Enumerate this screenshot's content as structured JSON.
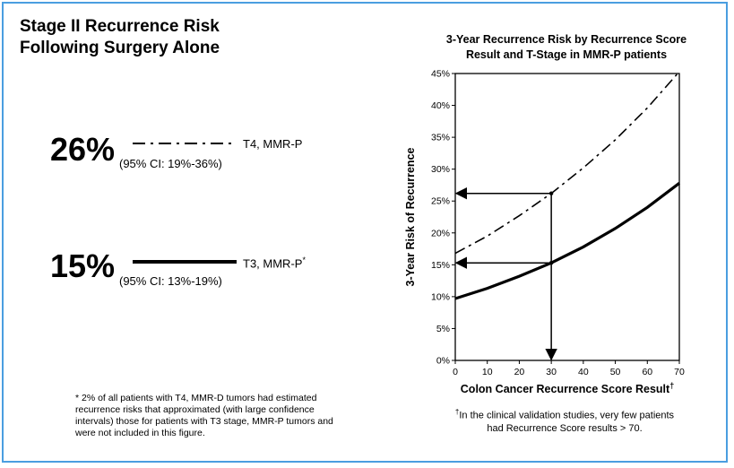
{
  "left_panel": {
    "title_line1": "Stage II Recurrence Risk",
    "title_line2": "Following Surgery Alone",
    "risks": [
      {
        "percent": "26%",
        "ci": "(95% CI: 19%-36%)",
        "label": "T4, MMR-P",
        "style": "dash-dot"
      },
      {
        "percent": "15%",
        "ci": "(95% CI: 13%-19%)",
        "label": "T3, MMR-P",
        "label_mark": "*",
        "style": "solid"
      }
    ],
    "footnote": "* 2% of all patients with T4, MMR-D tumors had estimated recurrence risks that approximated (with large confidence intervals) those for patients with T3 stage, MMR-P tumors and were not included in this figure."
  },
  "chart_data": {
    "type": "line",
    "title_line1": "3-Year Recurrence Risk by Recurrence Score",
    "title_line2": "Result and T-Stage in MMR-P patients",
    "xlabel": "Colon Cancer Recurrence Score Result",
    "xlabel_mark": "†",
    "ylabel": "3-Year Risk of Recurrence",
    "xlim": [
      0,
      70
    ],
    "ylim": [
      0,
      45
    ],
    "x_ticks": [
      0,
      10,
      20,
      30,
      40,
      50,
      60,
      70
    ],
    "y_ticks": [
      0,
      5,
      10,
      15,
      20,
      25,
      30,
      35,
      40,
      45
    ],
    "y_tick_labels": [
      "0%",
      "5%",
      "10%",
      "15%",
      "20%",
      "25%",
      "30%",
      "35%",
      "40%",
      "45%"
    ],
    "grid": false,
    "series": [
      {
        "style": "dash-dot",
        "x": [
          0,
          10,
          20,
          30,
          40,
          50,
          60,
          70
        ],
        "y": [
          16.8,
          19.5,
          22.7,
          26.2,
          30.2,
          34.6,
          39.6,
          45.3
        ]
      },
      {
        "style": "solid",
        "x": [
          0,
          10,
          20,
          30,
          40,
          50,
          60,
          70
        ],
        "y": [
          9.7,
          11.3,
          13.2,
          15.3,
          17.8,
          20.7,
          24.0,
          27.8
        ]
      }
    ],
    "reference_x": 30,
    "reference_points": [
      26.2,
      15.3
    ],
    "footnote_mark": "†",
    "footnote_line1": "In the clinical validation studies, very few patients",
    "footnote_line2": "had Recurrence Score results > 70."
  }
}
